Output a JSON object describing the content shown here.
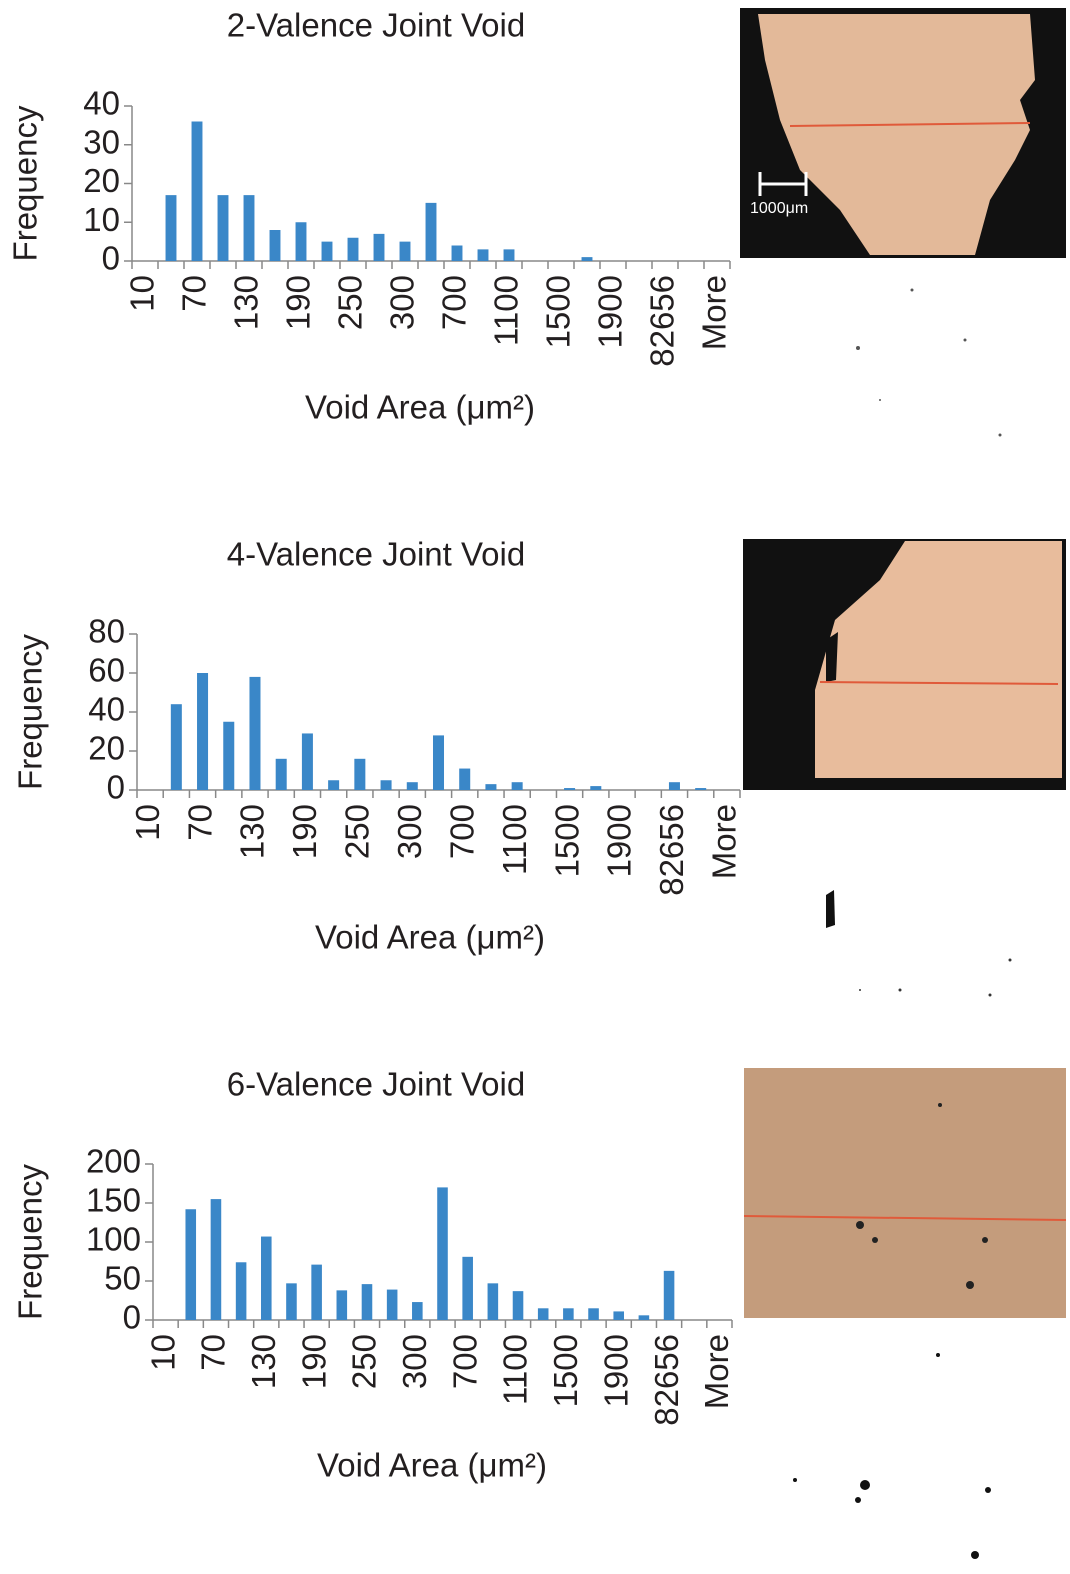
{
  "chart_data": [
    {
      "type": "bar",
      "title": "2-Valence Joint Void",
      "x_label": "Void Area (μm²)",
      "y_label": "Frequency",
      "categories": [
        "10",
        null,
        "70",
        null,
        "130",
        null,
        "190",
        null,
        "250",
        null,
        "300",
        null,
        "700",
        null,
        "1100",
        null,
        "1500",
        null,
        "1900",
        null,
        "82656",
        null,
        "More"
      ],
      "values": [
        0,
        17,
        36,
        17,
        17,
        8,
        10,
        5,
        6,
        7,
        5,
        15,
        4,
        3,
        3,
        0,
        0,
        1,
        0,
        0,
        0,
        0,
        0
      ],
      "color": "#3a87c8",
      "ylim": [
        0,
        40
      ],
      "yticks": [
        0,
        10,
        20,
        30,
        40
      ],
      "grid": false
    },
    {
      "type": "bar",
      "title": "4-Valence Joint Void",
      "x_label": "Void Area (μm²)",
      "y_label": "Frequency",
      "categories": [
        "10",
        null,
        "70",
        null,
        "130",
        null,
        "190",
        null,
        "250",
        null,
        "300",
        null,
        "700",
        null,
        "1100",
        null,
        "1500",
        null,
        "1900",
        null,
        "82656",
        null,
        "More"
      ],
      "values": [
        0,
        44,
        60,
        35,
        58,
        16,
        29,
        5,
        16,
        5,
        4,
        28,
        11,
        3,
        4,
        0,
        1,
        2,
        0,
        0,
        4,
        1,
        0
      ],
      "color": "#3a87c8",
      "ylim": [
        0,
        80
      ],
      "yticks": [
        0,
        20,
        40,
        60,
        80
      ],
      "grid": false
    },
    {
      "type": "bar",
      "title": "6-Valence Joint Void",
      "x_label": "Void Area (μm²)",
      "y_label": "Frequency",
      "categories": [
        "10",
        null,
        "70",
        null,
        "130",
        null,
        "190",
        null,
        "250",
        null,
        "300",
        null,
        "700",
        null,
        "1100",
        null,
        "1500",
        null,
        "1900",
        null,
        "82656",
        null,
        "More"
      ],
      "values": [
        0,
        142,
        155,
        74,
        107,
        47,
        71,
        38,
        46,
        39,
        23,
        170,
        81,
        47,
        37,
        15,
        15,
        15,
        11,
        6,
        63,
        0,
        0
      ],
      "color": "#3a87c8",
      "ylim": [
        0,
        200
      ],
      "yticks": [
        0,
        50,
        100,
        150,
        200
      ],
      "grid": false
    }
  ],
  "images": {
    "scale_label": "1000μm"
  }
}
